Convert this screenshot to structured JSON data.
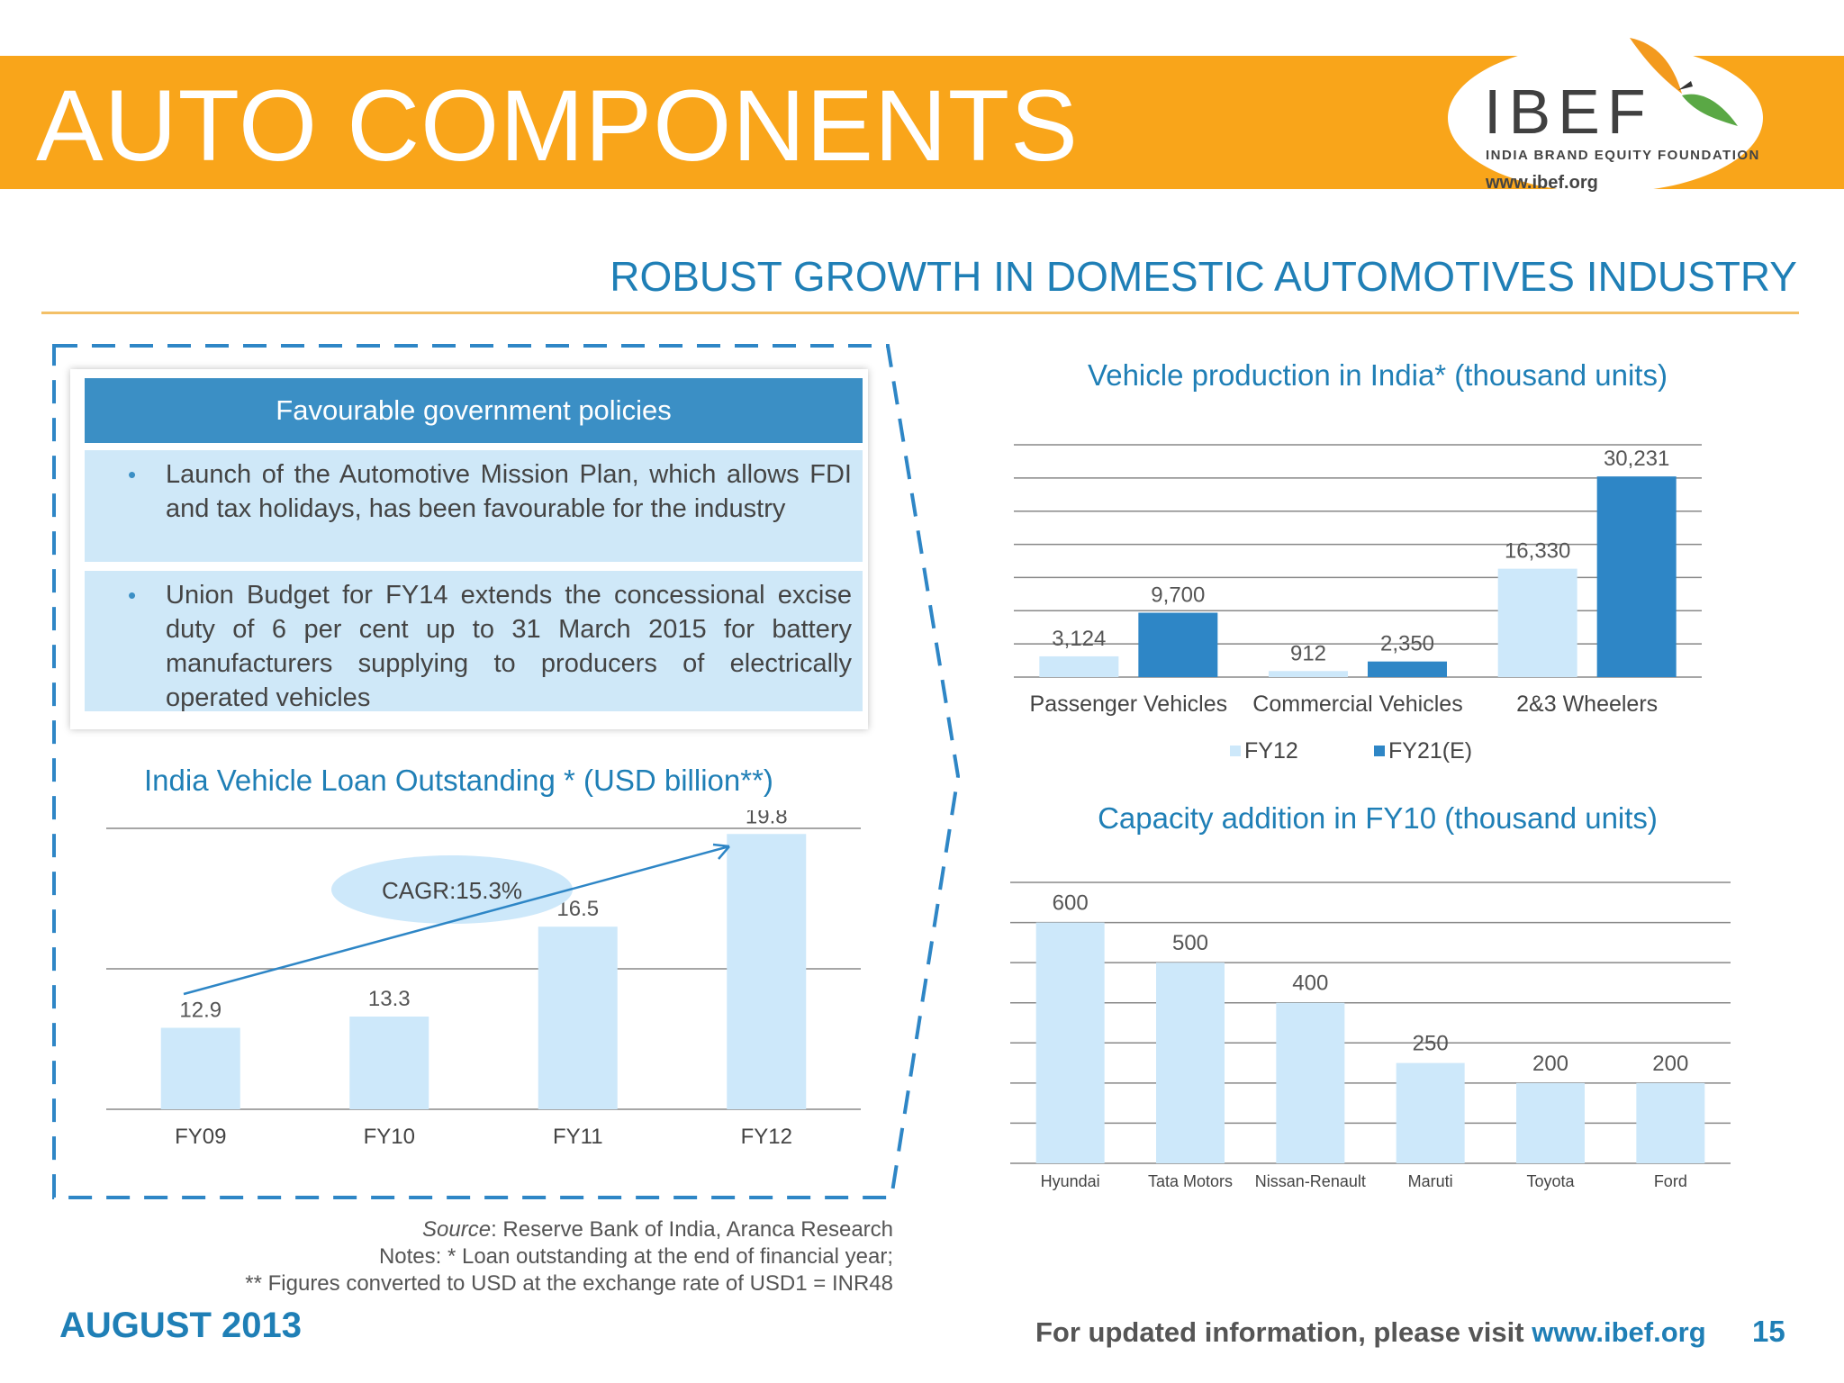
{
  "header": {
    "title": "AUTO COMPONENTS"
  },
  "logo": {
    "name": "IBEF",
    "tagline": "INDIA BRAND EQUITY FOUNDATION",
    "url": "www.ibef.org"
  },
  "subtitle": "ROBUST GROWTH IN DOMESTIC AUTOMOTIVES INDUSTRY",
  "policies": {
    "heading": "Favourable government policies",
    "items": [
      "Launch of the Automotive Mission Plan, which allows FDI and tax holidays, has been favourable for the industry",
      "Union Budget for FY14 extends the concessional excise duty of 6 per cent up to 31 March 2015 for battery manufacturers supplying to producers of electrically operated vehicles"
    ]
  },
  "chart_data": [
    {
      "type": "bar",
      "title": "India Vehicle Loan Outstanding * (USD billion**)",
      "categories": [
        "FY09",
        "FY10",
        "FY11",
        "FY12"
      ],
      "values": [
        12.9,
        13.3,
        16.5,
        19.8
      ],
      "value_labels": [
        "12.9",
        "13.3",
        "16.5",
        "19.8"
      ],
      "ylim": [
        10,
        20
      ],
      "grid": true,
      "annotation": "CAGR:15.3%",
      "color": "#cde8fa"
    },
    {
      "type": "bar",
      "title": "Vehicle production in India* (thousand units)",
      "categories": [
        "Passenger Vehicles",
        "Commercial Vehicles",
        "2&3 Wheelers"
      ],
      "series": [
        {
          "name": "FY12",
          "values": [
            3124,
            912,
            16330
          ],
          "labels": [
            "3,124",
            "912",
            "16,330"
          ],
          "color": "#cde8fa"
        },
        {
          "name": "FY21(E)",
          "values": [
            9700,
            2350,
            30231
          ],
          "labels": [
            "9,700",
            "2,350",
            "30,231"
          ],
          "color": "#2e86c6"
        }
      ],
      "ylim": [
        0,
        35000
      ],
      "grid": true,
      "legend": "bottom"
    },
    {
      "type": "bar",
      "title": "Capacity addition in FY10 (thousand units)",
      "categories": [
        "Hyundai",
        "Tata Motors",
        "Nissan-Renault",
        "Maruti",
        "Toyota",
        "Ford"
      ],
      "values": [
        600,
        500,
        400,
        250,
        200,
        200
      ],
      "value_labels": [
        "600",
        "500",
        "400",
        "250",
        "200",
        "200"
      ],
      "ylim": [
        0,
        700
      ],
      "grid": true,
      "color": "#cde8fa"
    }
  ],
  "notes": {
    "source_label": "Source",
    "source_text": ": Reserve Bank of India, Aranca Research",
    "note1": "Notes: * Loan outstanding at the end of financial year;",
    "note2": "** Figures converted to USD at the exchange rate of USD1 = INR48"
  },
  "footer": {
    "date": "AUGUST 2013",
    "visit_text": "For updated information, please visit ",
    "visit_url": "www.ibef.org",
    "page": "15"
  }
}
